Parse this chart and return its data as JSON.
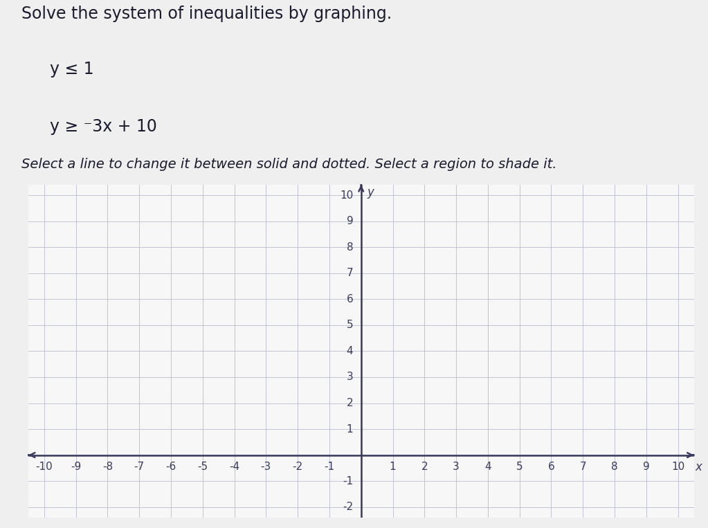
{
  "title_line1": "Solve the system of inequalities by graphing.",
  "eq1": "y ≤ 1",
  "eq2": "y ≥ ⁻3x + 10",
  "instruction": "Select a line to change it between solid and dotted. Select a region to shade it.",
  "xmin": -10,
  "xmax": 10,
  "ymin": -2,
  "ymax": 10,
  "grid_color": "#b8bcd0",
  "axis_color": "#3a3a5c",
  "bg_top": "#f0eff0",
  "bg_graph": "#f8f7f8",
  "text_color": "#1a1a2e",
  "title_fontsize": 17,
  "eq_fontsize": 17,
  "instruction_fontsize": 14,
  "tick_fontsize": 11
}
